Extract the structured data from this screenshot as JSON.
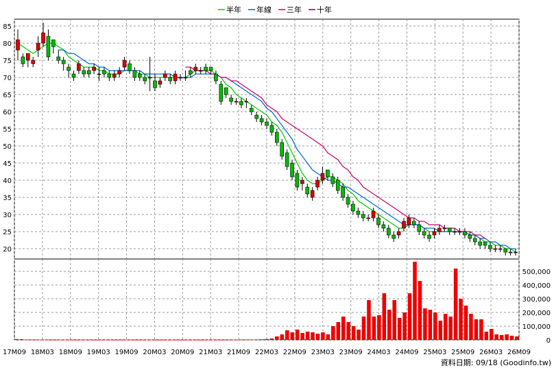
{
  "chart_data": {
    "type": "candlestick-with-volume",
    "legend": {
      "placement": "top-center",
      "items": [
        {
          "name": "半年",
          "color": "#00cc00"
        },
        {
          "name": "年線",
          "color": "#0066dd"
        },
        {
          "name": "三年",
          "color": "#cc0066"
        },
        {
          "name": "十年",
          "color": "#660099"
        }
      ]
    },
    "price_axis": {
      "ylim": [
        17,
        87
      ],
      "ticks": [
        "20",
        "25",
        "30",
        "35",
        "40",
        "45",
        "50",
        "55",
        "60",
        "65",
        "70",
        "75",
        "80",
        "85"
      ],
      "position": "left"
    },
    "volume_axis": {
      "ylim": [
        0,
        590000
      ],
      "ticks": [
        "0",
        "100,000",
        "200,000",
        "300,000",
        "400,000",
        "500,000"
      ],
      "position": "right"
    },
    "x_axis": {
      "ticks": [
        "17M09",
        "18M03",
        "18M09",
        "19M03",
        "19M09",
        "20M03",
        "20M09",
        "21M03",
        "21M09",
        "22M03",
        "22M09",
        "23M03",
        "23M09",
        "24M03",
        "24M09",
        "25M03",
        "25M09",
        "26M03",
        "26M09"
      ]
    },
    "grid": true,
    "footer": "資料日期: 09/18 (Goodinfo.tw)",
    "candles": {
      "x_start": "17M09",
      "x_end": "26M09",
      "open": [
        78,
        76,
        75,
        74,
        78,
        80,
        82,
        81,
        76,
        75,
        73,
        71,
        72,
        72,
        72,
        72,
        71,
        72,
        71,
        70,
        71,
        73,
        74,
        72,
        71,
        70,
        70,
        69,
        68,
        70,
        70,
        69,
        70,
        70,
        72,
        72,
        72,
        73,
        73,
        71,
        68,
        67,
        64,
        63,
        63,
        63,
        61,
        59,
        58,
        57,
        56,
        54,
        51,
        48,
        45,
        42,
        39,
        38,
        35,
        38,
        40,
        43,
        41,
        40,
        38,
        35,
        33,
        31,
        30,
        29,
        29,
        29,
        27,
        26,
        24,
        24,
        26,
        27,
        28,
        27,
        25,
        24,
        24,
        25,
        26,
        26,
        25,
        25,
        25,
        24,
        23,
        22,
        22,
        21,
        20,
        20,
        20,
        19,
        19
      ],
      "close": [
        81,
        74,
        77,
        75,
        80,
        83,
        76,
        79,
        75,
        74,
        72,
        70,
        74,
        71,
        71,
        73,
        71,
        71,
        70,
        71,
        72,
        75,
        72,
        70,
        70,
        69,
        70,
        67,
        69,
        71,
        69,
        71,
        70,
        70,
        71,
        73,
        72,
        72,
        72,
        69,
        63,
        65,
        63,
        63,
        62,
        63,
        60,
        58,
        57,
        56,
        54,
        51,
        47,
        44,
        41,
        38,
        40,
        36,
        37,
        40,
        42,
        41,
        39,
        37,
        35,
        33,
        31,
        30,
        29,
        29,
        31,
        27,
        26,
        24,
        23,
        25,
        28,
        29,
        27,
        25,
        24,
        23,
        25,
        26,
        26,
        25,
        25,
        25,
        24,
        23,
        22,
        21,
        21,
        20,
        20,
        20,
        19,
        19,
        19
      ],
      "high": [
        84,
        77,
        77,
        76,
        82,
        86,
        84,
        81,
        78,
        76,
        74,
        72,
        75,
        73,
        73,
        74,
        73,
        73,
        72,
        72,
        73,
        76,
        75,
        73,
        72,
        71,
        76,
        71,
        70,
        72,
        71,
        72,
        71,
        72,
        73,
        74,
        73,
        74,
        73,
        72,
        69,
        67,
        65,
        64,
        64,
        64,
        62,
        60,
        59,
        58,
        57,
        55,
        52,
        49,
        46,
        43,
        41,
        39,
        38,
        41,
        44,
        43,
        42,
        41,
        39,
        36,
        34,
        32,
        31,
        30,
        32,
        30,
        28,
        27,
        25,
        26,
        29,
        30,
        29,
        28,
        26,
        25,
        26,
        27,
        27,
        26,
        26,
        26,
        26,
        25,
        24,
        23,
        22,
        22,
        21,
        21,
        20,
        20,
        20
      ],
      "low": [
        75,
        73,
        73,
        73,
        76,
        79,
        75,
        77,
        74,
        72,
        70,
        69,
        71,
        70,
        70,
        71,
        69,
        70,
        69,
        69,
        70,
        72,
        71,
        69,
        69,
        68,
        66,
        66,
        67,
        69,
        68,
        68,
        69,
        69,
        70,
        71,
        71,
        71,
        71,
        68,
        62,
        64,
        62,
        62,
        61,
        61,
        59,
        57,
        56,
        55,
        53,
        50,
        46,
        43,
        40,
        37,
        37,
        35,
        34,
        37,
        39,
        40,
        38,
        36,
        34,
        32,
        30,
        29,
        28,
        28,
        28,
        26,
        25,
        23,
        22,
        23,
        25,
        26,
        26,
        24,
        23,
        22,
        23,
        24,
        25,
        24,
        24,
        24,
        23,
        22,
        21,
        20,
        20,
        19,
        19,
        19,
        18,
        18,
        18
      ]
    },
    "ma_lines": {
      "半年": [
        80,
        79,
        78,
        77,
        78,
        79,
        80,
        80,
        79,
        78,
        76,
        75,
        74,
        73,
        73,
        73,
        72,
        72,
        71,
        71,
        71,
        72,
        72,
        72,
        71,
        71,
        70,
        70,
        70,
        70,
        70,
        70,
        70,
        70,
        71,
        72,
        72,
        72,
        72,
        71,
        70,
        68,
        67,
        65,
        64,
        63,
        62,
        61,
        60,
        59,
        57,
        56,
        54,
        51,
        48,
        45,
        42,
        40,
        39,
        39,
        40,
        41,
        41,
        40,
        39,
        37,
        36,
        34,
        33,
        32,
        31,
        30,
        29,
        28,
        27,
        26,
        26,
        27,
        27,
        27,
        26,
        25,
        25,
        25,
        25,
        25,
        25,
        25,
        25,
        24,
        24,
        23,
        22,
        22,
        21,
        21,
        20,
        20,
        19
      ],
      "年線": [
        null,
        null,
        null,
        null,
        null,
        null,
        null,
        null,
        78,
        78,
        77,
        77,
        76,
        75,
        74,
        74,
        73,
        73,
        72,
        72,
        72,
        72,
        72,
        72,
        72,
        71,
        71,
        71,
        71,
        71,
        71,
        70,
        70,
        70,
        70,
        71,
        71,
        71,
        71,
        71,
        70,
        70,
        69,
        68,
        67,
        66,
        65,
        64,
        63,
        61,
        60,
        58,
        56,
        54,
        52,
        49,
        47,
        45,
        43,
        42,
        41,
        40,
        40,
        39,
        38,
        38,
        37,
        36,
        35,
        34,
        33,
        32,
        31,
        30,
        29,
        28,
        27,
        27,
        27,
        27,
        26,
        26,
        26,
        25,
        25,
        25,
        25,
        25,
        25,
        24,
        24,
        23,
        23,
        22,
        22,
        21,
        21,
        20,
        20
      ],
      "三年": [
        null,
        null,
        null,
        null,
        null,
        null,
        null,
        null,
        null,
        null,
        null,
        null,
        null,
        null,
        null,
        null,
        null,
        null,
        null,
        null,
        null,
        null,
        null,
        null,
        null,
        null,
        null,
        null,
        null,
        null,
        null,
        null,
        null,
        73,
        73,
        72,
        72,
        72,
        71,
        71,
        70,
        70,
        69,
        69,
        68,
        67,
        66,
        65,
        64,
        62,
        61,
        60,
        58,
        57,
        56,
        55,
        54,
        53,
        52,
        51,
        50,
        48,
        47,
        46,
        44,
        43,
        41,
        40,
        38,
        37,
        36,
        35,
        34,
        33,
        32,
        31,
        30,
        29,
        29,
        28,
        28,
        27,
        27,
        27,
        26,
        26,
        26,
        25,
        25,
        25,
        24,
        24,
        23
      ],
      "十年": []
    },
    "volume": [
      6000,
      5000,
      2000,
      1500,
      1200,
      1000,
      1000,
      800,
      800,
      800,
      700,
      700,
      600,
      600,
      600,
      600,
      600,
      500,
      500,
      500,
      500,
      500,
      500,
      500,
      500,
      500,
      500,
      500,
      500,
      500,
      500,
      500,
      500,
      500,
      500,
      500,
      500,
      500,
      500,
      500,
      600,
      700,
      800,
      1000,
      1500,
      2000,
      2500,
      3000,
      4000,
      6000,
      10000,
      25000,
      40000,
      70000,
      55000,
      75000,
      50000,
      60000,
      55000,
      45000,
      55000,
      40000,
      100000,
      130000,
      170000,
      130000,
      100000,
      75000,
      170000,
      290000,
      170000,
      180000,
      340000,
      220000,
      290000,
      160000,
      200000,
      340000,
      570000,
      430000,
      230000,
      220000,
      200000,
      140000,
      190000,
      170000,
      520000,
      300000,
      250000,
      190000,
      150000,
      150000,
      60000,
      80000,
      40000,
      35000,
      40000,
      30000,
      25000
    ]
  }
}
